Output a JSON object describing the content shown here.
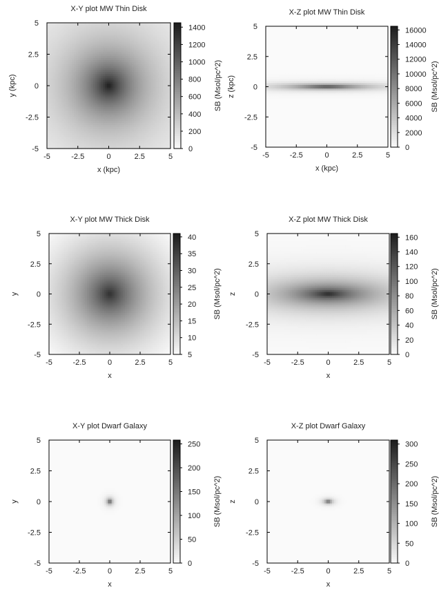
{
  "chart_data": [
    {
      "type": "heatmap",
      "title": "X-Y plot MW Thin Disk",
      "xlabel": "x (kpc)",
      "ylabel": "y (kpc)",
      "colorbar_label": "SB (Msol/pc^2)",
      "xlim": [
        -5,
        5
      ],
      "ylim": [
        -5,
        5
      ],
      "x_ticks": [
        "-5",
        "-2.5",
        "0",
        "2.5",
        "5"
      ],
      "y_ticks": [
        "5",
        "2.5",
        "0",
        "-2.5",
        "-5"
      ],
      "colorbar_range": [
        0,
        1450
      ],
      "colorbar_ticks": [
        "1400",
        "1200",
        "1000",
        "800",
        "600",
        "400",
        "200",
        "0"
      ],
      "colorbar_tick_values": [
        1400,
        1200,
        1000,
        800,
        600,
        400,
        200,
        0
      ],
      "peak_value": 1450,
      "profile": {
        "shape": "exponential",
        "scale_x": 2.6,
        "scale_y": 2.6,
        "floor": 0.03
      },
      "grayscale": true
    },
    {
      "type": "heatmap",
      "title": "X-Z plot MW Thin Disk",
      "xlabel": "x (kpc)",
      "ylabel": "z (kpc)",
      "colorbar_label": "SB (Msol/pc^2)",
      "xlim": [
        -5,
        5
      ],
      "ylim": [
        -5,
        5
      ],
      "x_ticks": [
        "-5",
        "-2.5",
        "0",
        "2.5",
        "5"
      ],
      "y_ticks": [
        "5",
        "2.5",
        "0",
        "-2.5",
        "-5"
      ],
      "colorbar_range": [
        0,
        16500
      ],
      "colorbar_ticks": [
        "16000",
        "14000",
        "12000",
        "10000",
        "8000",
        "6000",
        "4000",
        "2000",
        "0"
      ],
      "colorbar_tick_values": [
        16000,
        14000,
        12000,
        10000,
        8000,
        6000,
        4000,
        2000,
        0
      ],
      "peak_value": 16500,
      "profile": {
        "shape": "exponential",
        "scale_x": 2.6,
        "scale_y": 0.18,
        "floor": 0
      },
      "grayscale": true
    },
    {
      "type": "heatmap",
      "title": "X-Y plot MW Thick Disk",
      "xlabel": "x",
      "ylabel": "y",
      "colorbar_label": "SB (Msol/pc^2)",
      "xlim": [
        -5,
        5
      ],
      "ylim": [
        -5,
        5
      ],
      "x_ticks": [
        "-5",
        "-2.5",
        "0",
        "2.5",
        "5"
      ],
      "y_ticks": [
        "5",
        "2.5",
        "0",
        "-2.5",
        "-5"
      ],
      "colorbar_range": [
        5,
        41
      ],
      "colorbar_ticks": [
        "40",
        "35",
        "30",
        "25",
        "20",
        "15",
        "10",
        "5"
      ],
      "colorbar_tick_values": [
        40,
        35,
        30,
        25,
        20,
        15,
        10,
        5
      ],
      "peak_value": 38,
      "profile": {
        "shape": "exponential",
        "scale_x": 3.6,
        "scale_y": 3.6,
        "floor": 0
      },
      "grayscale": true
    },
    {
      "type": "heatmap",
      "title": "X-Z plot MW Thick Disk",
      "xlabel": "x",
      "ylabel": "z",
      "colorbar_label": "SB (Msol/pc^2)",
      "xlim": [
        -5,
        5
      ],
      "ylim": [
        -5,
        5
      ],
      "x_ticks": [
        "-5",
        "-2.5",
        "0",
        "2.5",
        "5"
      ],
      "y_ticks": [
        "5",
        "2.5",
        "0",
        "-2.5",
        "-5"
      ],
      "colorbar_range": [
        0,
        165
      ],
      "colorbar_ticks": [
        "160",
        "140",
        "120",
        "100",
        "80",
        "60",
        "40",
        "20",
        "0"
      ],
      "colorbar_tick_values": [
        160,
        140,
        120,
        100,
        80,
        60,
        40,
        20,
        0
      ],
      "peak_value": 160,
      "profile": {
        "shape": "exponential",
        "scale_x": 3.6,
        "scale_y": 0.9,
        "floor": 0
      },
      "grayscale": true
    },
    {
      "type": "heatmap",
      "title": "X-Y plot Dwarf Galaxy",
      "xlabel": "x",
      "ylabel": "y",
      "colorbar_label": "SB (Msol/pc^2)",
      "xlim": [
        -5,
        5
      ],
      "ylim": [
        -5,
        5
      ],
      "x_ticks": [
        "-5",
        "-2.5",
        "0",
        "2.5",
        "5"
      ],
      "y_ticks": [
        "5",
        "2.5",
        "0",
        "-2.5",
        "-5"
      ],
      "colorbar_range": [
        0,
        258
      ],
      "colorbar_ticks": [
        "250",
        "200",
        "150",
        "100",
        "50",
        "0"
      ],
      "colorbar_tick_values": [
        250,
        200,
        150,
        100,
        50,
        0
      ],
      "peak_value": 258,
      "profile": {
        "shape": "exponential",
        "scale_x": 0.18,
        "scale_y": 0.18,
        "floor": 0
      },
      "grayscale": true
    },
    {
      "type": "heatmap",
      "title": "X-Z plot Dwarf Galaxy",
      "xlabel": "x",
      "ylabel": "z",
      "colorbar_label": "SB (Msol/pc^2)",
      "xlim": [
        -5,
        5
      ],
      "ylim": [
        -5,
        5
      ],
      "x_ticks": [
        "-5",
        "-2.5",
        "0",
        "2.5",
        "5"
      ],
      "y_ticks": [
        "5",
        "2.5",
        "0",
        "-2.5",
        "-5"
      ],
      "colorbar_range": [
        0,
        310
      ],
      "colorbar_ticks": [
        "300",
        "250",
        "200",
        "150",
        "100",
        "50",
        "0"
      ],
      "colorbar_tick_values": [
        300,
        250,
        200,
        150,
        100,
        50,
        0
      ],
      "peak_value": 310,
      "profile": {
        "shape": "exponential",
        "scale_x": 0.25,
        "scale_y": 0.13,
        "floor": 0
      },
      "grayscale": true
    }
  ]
}
